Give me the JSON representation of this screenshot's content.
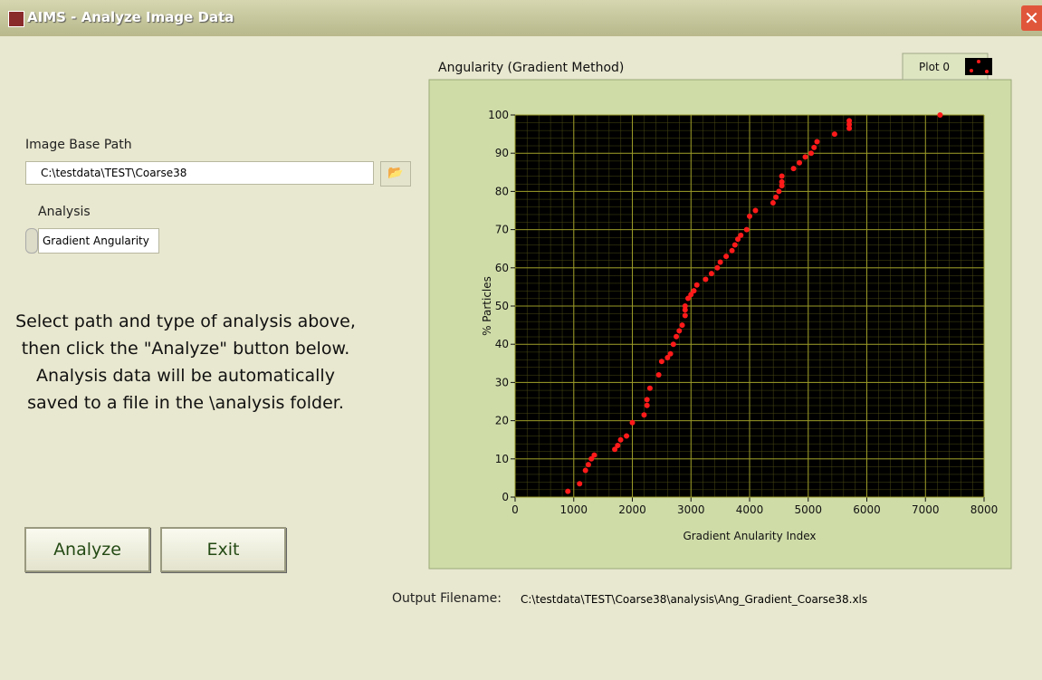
{
  "window": {
    "title": "AIMS - Analyze Image Data"
  },
  "form": {
    "path_label": "Image Base Path",
    "path_value": "C:\\testdata\\TEST\\Coarse38",
    "analysis_label": "Analysis",
    "analysis_value": "Gradient Angularity",
    "instructions": "Select path and type of analysis above, then click the \"Analyze\" button below.  Analysis data will be automatically saved to a file in the \\analysis folder.",
    "analyze_button": "Analyze",
    "exit_button": "Exit",
    "output_label": "Output Filename:",
    "output_value": "C:\\testdata\\TEST\\Coarse38\\analysis\\Ang_Gradient_Coarse38.xls"
  },
  "chart_data": {
    "type": "scatter",
    "title": "Angularity (Gradient Method)",
    "x_label": "Gradient Anularity Index",
    "y_label": "% Particles",
    "x": [
      900,
      1100,
      1200,
      1250,
      1300,
      1350,
      1700,
      1750,
      1800,
      1900,
      2000,
      2200,
      2250,
      2250,
      2300,
      2450,
      2500,
      2600,
      2650,
      2700,
      2750,
      2800,
      2850,
      2900,
      2900,
      2900,
      2950,
      3000,
      3050,
      3100,
      3250,
      3350,
      3450,
      3500,
      3600,
      3700,
      3750,
      3800,
      3850,
      3950,
      4000,
      4100,
      4400,
      4450,
      4500,
      4550,
      4550,
      4550,
      4750,
      4850,
      4950,
      5050,
      5100,
      5150,
      5450,
      5700,
      5700,
      5700,
      7250
    ],
    "series": [
      {
        "name": "Plot 0",
        "color": "#ff1a1a",
        "values": [
          1.5,
          3.5,
          7,
          8.5,
          10,
          11,
          12.5,
          13.5,
          15,
          16,
          19.5,
          21.5,
          24,
          25.5,
          28.5,
          32,
          35.5,
          36.5,
          37.5,
          40,
          42,
          43.5,
          45,
          47.5,
          49,
          50,
          52,
          53,
          54,
          55.5,
          57,
          58.5,
          60,
          61.5,
          63,
          64.5,
          66,
          67.5,
          68.5,
          70,
          73.5,
          75,
          77,
          78.5,
          80,
          81.5,
          82.5,
          84,
          86,
          87.5,
          89,
          90,
          91.5,
          93,
          95,
          96.5,
          97.5,
          98.5,
          100
        ]
      }
    ],
    "xlim": [
      0,
      8000
    ],
    "ylim": [
      0,
      100
    ],
    "xticks": [
      0,
      1000,
      2000,
      3000,
      4000,
      5000,
      6000,
      7000,
      8000
    ],
    "yticks": [
      0,
      10,
      20,
      30,
      40,
      50,
      60,
      70,
      80,
      90,
      100
    ],
    "grid": true,
    "background": "#000000",
    "grid_color": "#9a9a28",
    "legend": "upper right"
  }
}
